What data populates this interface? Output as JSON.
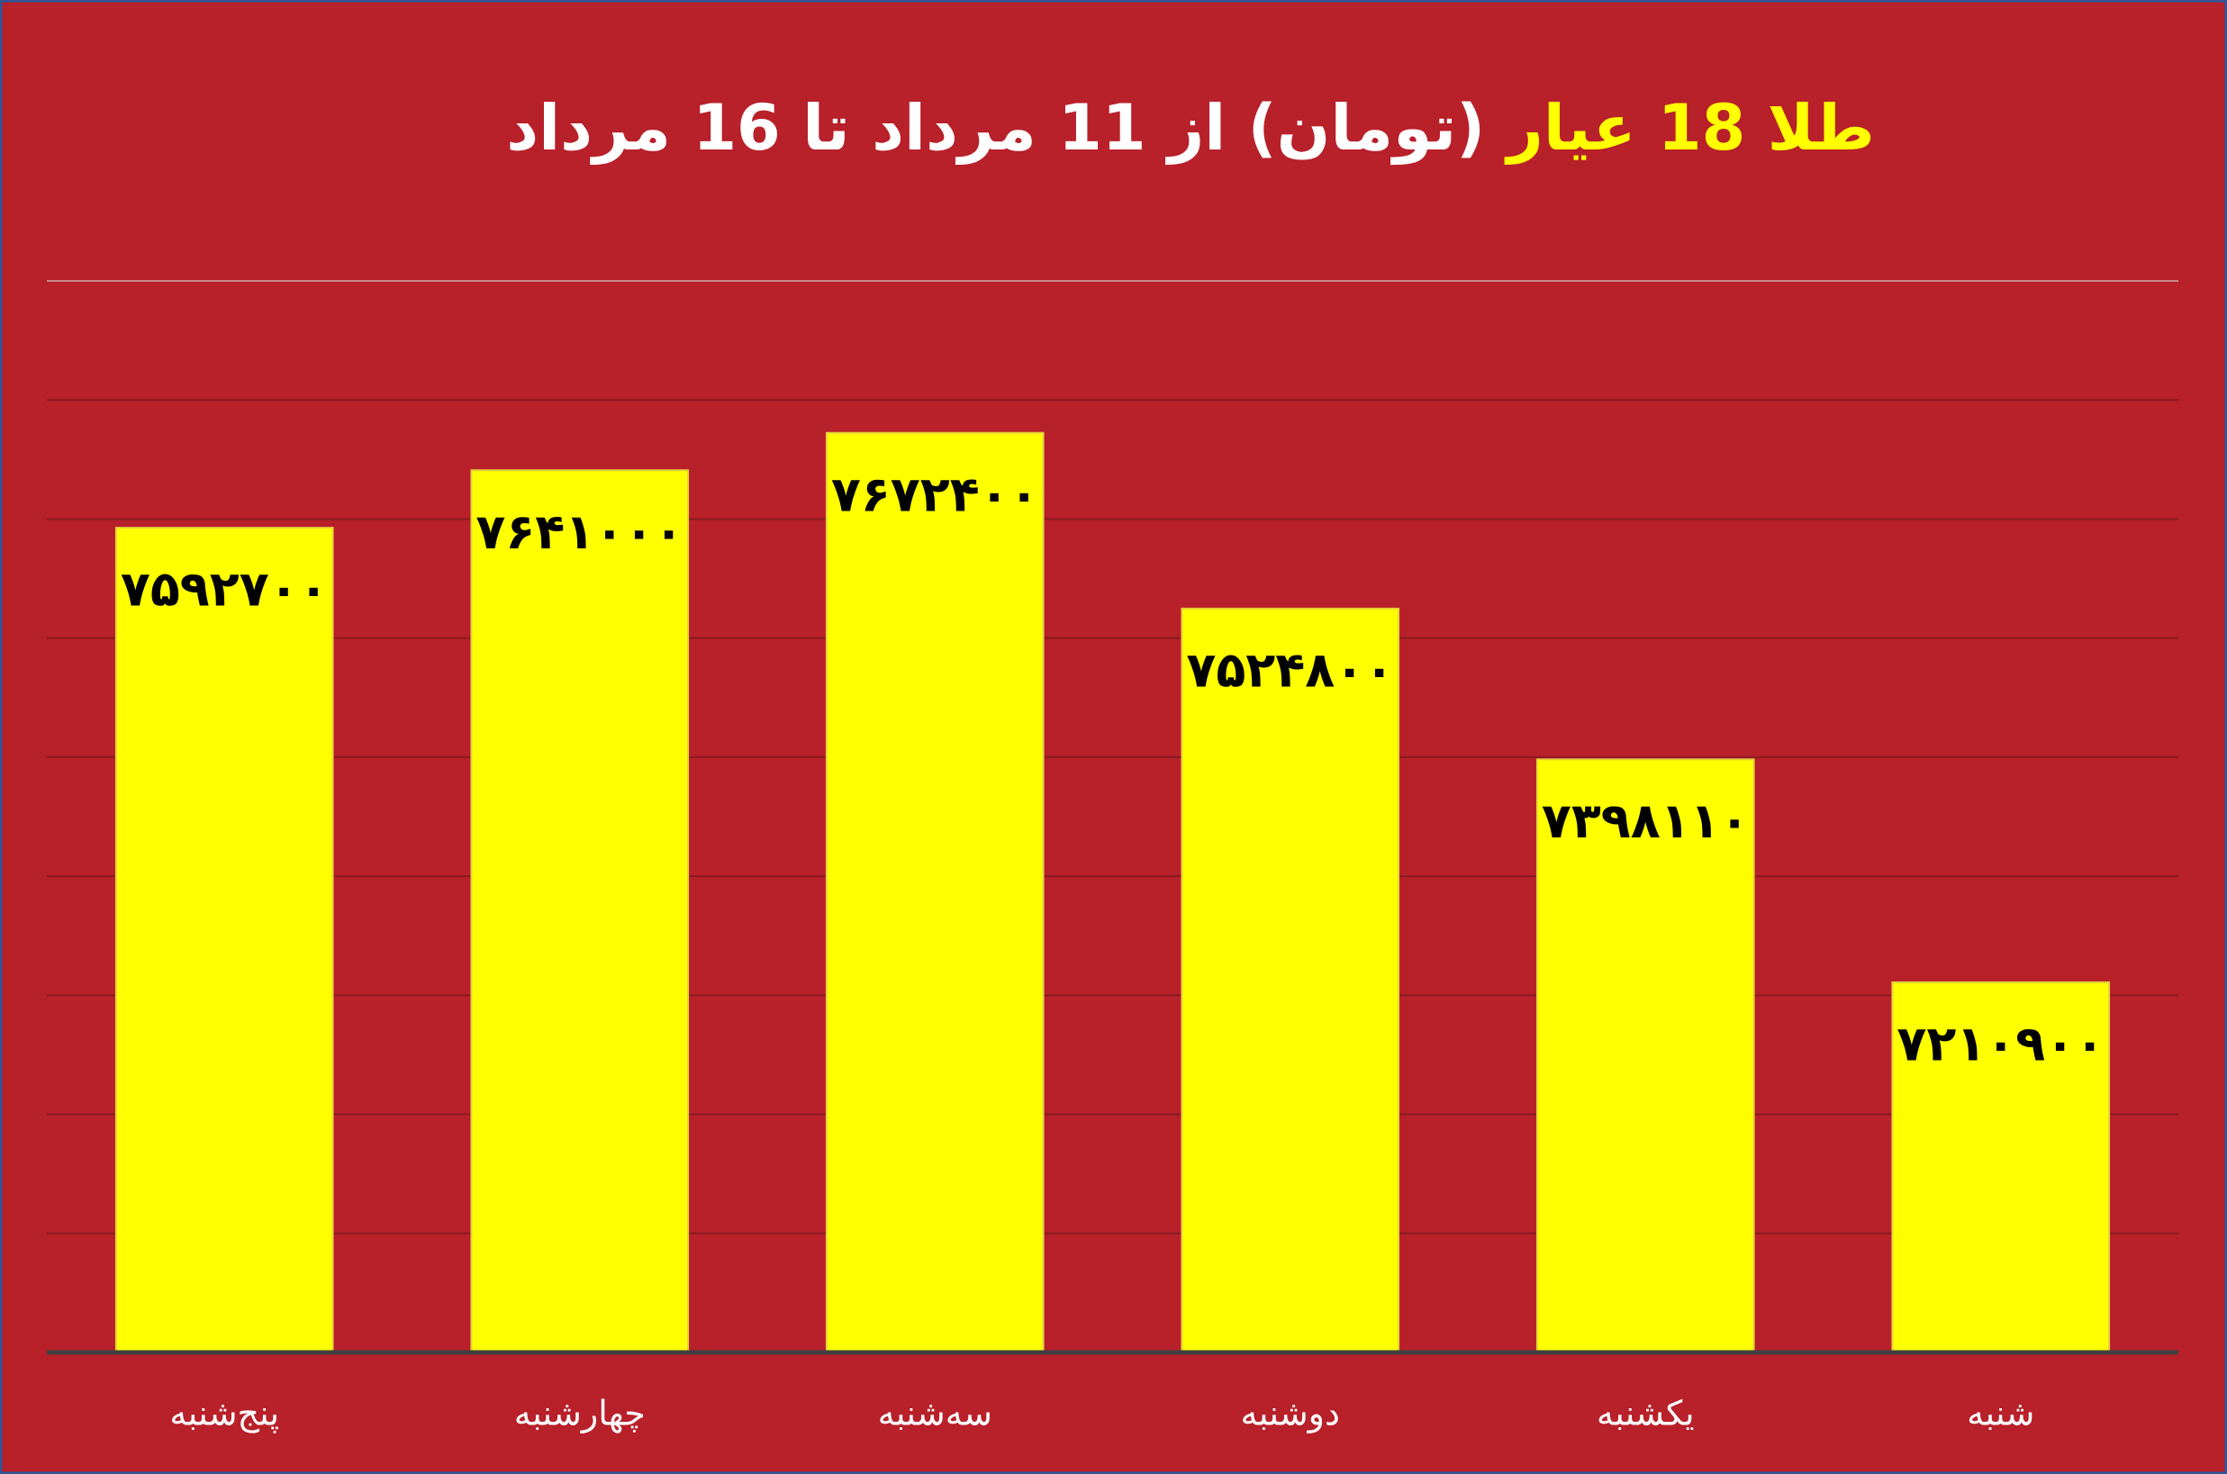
{
  "chart_data": {
    "type": "bar",
    "title_parts": [
      {
        "text": "طلا 18 عیار",
        "color": "#ffff00"
      },
      {
        "text": "(تومان) از 11 مرداد تا 16 مرداد",
        "color": "#ffffff"
      }
    ],
    "categories": [
      "پنج‌شنبه",
      "چهارشنبه",
      "سه‌شنبه",
      "دوشنبه",
      "یکشنبه",
      "شنبه"
    ],
    "values": [
      7592700,
      7641000,
      7672400,
      7524800,
      7398110,
      7210900
    ],
    "value_labels": [
      "۷۵۹۲۷۰۰",
      "۷۶۴۱۰۰۰",
      "۷۶۷۲۴۰۰",
      "۷۵۲۴۸۰۰",
      "۷۳۹۸۱۱۰",
      "۷۲۱۰۹۰۰"
    ],
    "color": "#ffff00",
    "ylim": [
      6900000,
      7800000
    ],
    "yticks": [
      6900000,
      7000000,
      7100000,
      7200000,
      7300000,
      7400000,
      7500000,
      7600000,
      7700000,
      7800000
    ],
    "grid": true
  }
}
